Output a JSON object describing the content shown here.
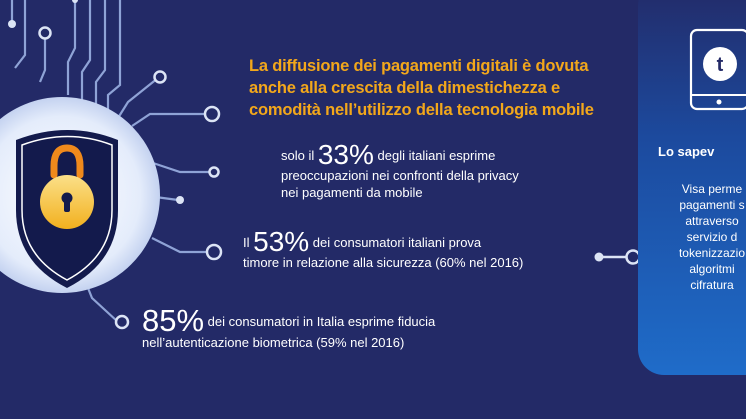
{
  "headline": {
    "line1": "La diffusione dei pagamenti digitali è dovuta",
    "line2": "anche alla crescita della dimestichezza e",
    "line3": "comodità nell’utilizzo della tecnologia mobile"
  },
  "stats": [
    {
      "prefix": "solo il ",
      "value": "33%",
      "line1_rest": " degli italiani esprime",
      "line2": "preoccupazioni nei confronti della privacy",
      "line3": "nei pagamenti da mobile"
    },
    {
      "prefix": "Il ",
      "value": "53%",
      "line1_rest": " dei consumatori italiani prova",
      "line2": "timore in relazione alla sicurezza (60% nel 2016)"
    },
    {
      "value": "85%",
      "line1_rest": " dei consumatori in Italia esprime fiducia",
      "line2": "nell’autenticazione biometrica (59% nel 2016)"
    }
  ],
  "side_panel": {
    "icon_letter": "t",
    "title": "Lo sapev",
    "lines": [
      "Visa perme",
      "pagamenti s",
      "attraverso",
      "servizio d",
      "tokenizzazio",
      "algoritmi",
      "cifratura"
    ]
  },
  "colors": {
    "background": "#232a67",
    "accent": "#f2a71b",
    "circuit": "#8fa3d6",
    "panel": "#1a56b0"
  }
}
